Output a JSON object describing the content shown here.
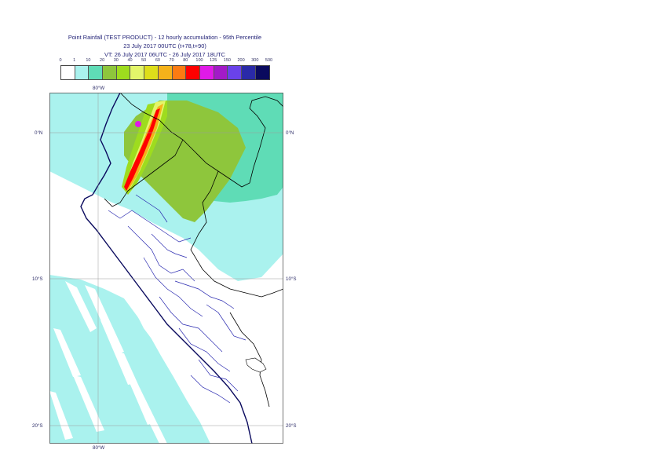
{
  "title": {
    "line1": "Point Rainfall (TEST PRODUCT) - 12 hourly accumulation - 95th Percentile",
    "line2": "23 July 2017 00UTC (t+78,t+90)",
    "line3": "VT: 26 July 2017 06UTC - 26 July 2017 18UTC"
  },
  "legend": {
    "ticks": [
      "0",
      "1",
      "10",
      "20",
      "30",
      "40",
      "50",
      "60",
      "70",
      "80",
      "100",
      "125",
      "150",
      "200",
      "300",
      "500"
    ],
    "colors": [
      "#ffffff",
      "#aaf2ee",
      "#5fdcb6",
      "#8ec63c",
      "#9edc1e",
      "#e3f56a",
      "#dede1a",
      "#f5b21a",
      "#fb7b12",
      "#ff0000",
      "#e01ae8",
      "#a31ac8",
      "#6a42ea",
      "#2a2aa8",
      "#0a0a5e"
    ]
  },
  "map": {
    "lon_top_label": "80°W",
    "lon_bottom_label": "80°W",
    "lat_labels": {
      "left": [
        "0°N",
        "10°S",
        "20°S"
      ],
      "right": [
        "0°N",
        "10°S",
        "20°S"
      ]
    }
  }
}
